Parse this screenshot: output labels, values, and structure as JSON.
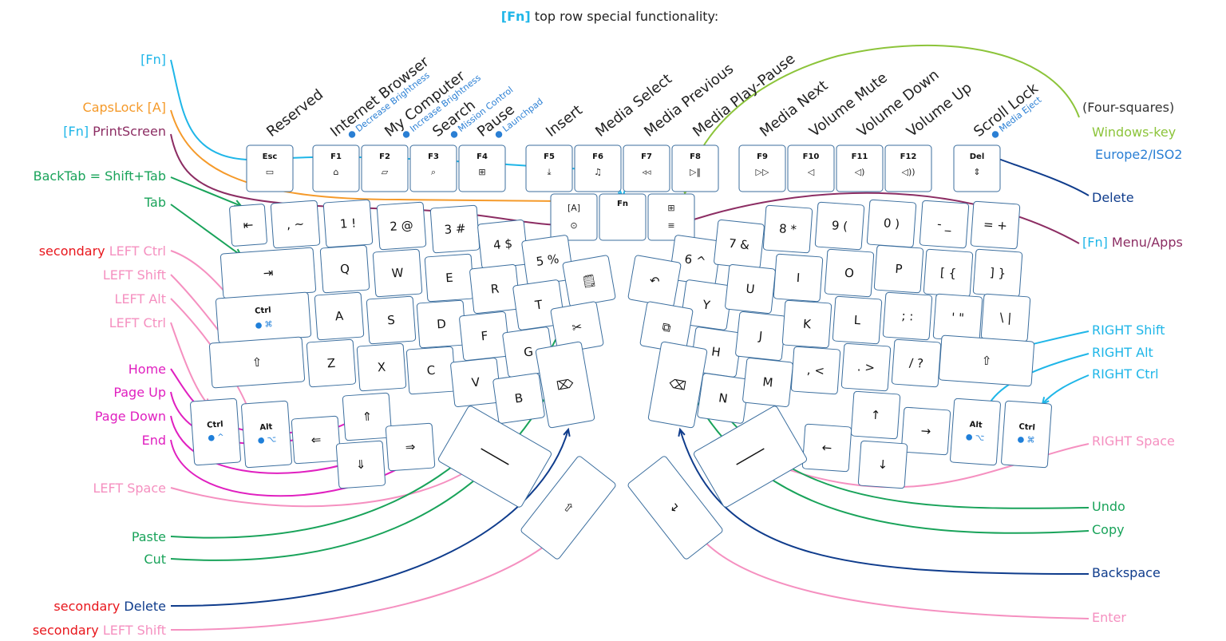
{
  "title": {
    "fn": "[Fn]",
    "rest": " top row special functionality:"
  },
  "colors": {
    "cyan": "#1fb6e8",
    "orange": "#f59a2a",
    "plum": "#8c2d63",
    "green": "#19a35a",
    "pink": "#f590c0",
    "red": "#e8161c",
    "magenta": "#e020c0",
    "navy": "#0f3c8c",
    "lime": "#8cc43a",
    "blue": "#2a7fd4"
  },
  "fn_row": [
    {
      "text": "Reserved",
      "sub": ""
    },
    {
      "text": "Internet Browser",
      "sub": "Decrease Brightness"
    },
    {
      "text": "My Computer",
      "sub": "Increase Brightness"
    },
    {
      "text": "Search",
      "sub": "Mission Control"
    },
    {
      "text": "Pause",
      "sub": "Launchpad"
    },
    {
      "text": "Insert",
      "sub": ""
    },
    {
      "text": "Media Select",
      "sub": ""
    },
    {
      "text": "Media Previous",
      "sub": ""
    },
    {
      "text": "Media Play-Pause",
      "sub": ""
    },
    {
      "text": "Media Next",
      "sub": ""
    },
    {
      "text": "Volume Mute",
      "sub": ""
    },
    {
      "text": "Volume Down",
      "sub": ""
    },
    {
      "text": "Volume Up",
      "sub": ""
    },
    {
      "text": "Scroll Lock",
      "sub": "Media Eject"
    }
  ],
  "left_labels": [
    {
      "parts": [
        {
          "t": "[Fn]",
          "c": "cyan"
        }
      ]
    },
    {
      "parts": [
        {
          "t": "CapsLock [A]",
          "c": "orange"
        }
      ]
    },
    {
      "parts": [
        {
          "t": "[Fn]",
          "c": "cyan"
        },
        {
          "t": " PrintScreen",
          "c": "plum"
        }
      ]
    },
    {
      "parts": [
        {
          "t": "BackTab = Shift+Tab",
          "c": "green"
        }
      ]
    },
    {
      "parts": [
        {
          "t": "Tab",
          "c": "green"
        }
      ]
    },
    {
      "parts": [
        {
          "t": "secondary",
          "c": "red"
        },
        {
          "t": " LEFT Ctrl",
          "c": "pink"
        }
      ]
    },
    {
      "parts": [
        {
          "t": "LEFT Shift",
          "c": "pink"
        }
      ]
    },
    {
      "parts": [
        {
          "t": "LEFT Alt",
          "c": "pink"
        }
      ]
    },
    {
      "parts": [
        {
          "t": "LEFT Ctrl",
          "c": "pink"
        }
      ]
    },
    {
      "parts": [
        {
          "t": "Home",
          "c": "magenta"
        }
      ]
    },
    {
      "parts": [
        {
          "t": "Page Up",
          "c": "magenta"
        }
      ]
    },
    {
      "parts": [
        {
          "t": "Page Down",
          "c": "magenta"
        }
      ]
    },
    {
      "parts": [
        {
          "t": "End",
          "c": "magenta"
        }
      ]
    },
    {
      "parts": [
        {
          "t": "LEFT Space",
          "c": "pink"
        }
      ]
    },
    {
      "parts": [
        {
          "t": "Paste",
          "c": "green"
        }
      ]
    },
    {
      "parts": [
        {
          "t": "Cut",
          "c": "green"
        }
      ]
    },
    {
      "parts": [
        {
          "t": "secondary",
          "c": "red"
        },
        {
          "t": " Delete",
          "c": "navy"
        }
      ]
    },
    {
      "parts": [
        {
          "t": "secondary",
          "c": "red"
        },
        {
          "t": " LEFT Shift",
          "c": "pink"
        }
      ]
    }
  ],
  "right_labels": [
    {
      "parts": [
        {
          "t": "(Four-squares)",
          "c": "dark"
        }
      ]
    },
    {
      "parts": [
        {
          "t": "Windows-key",
          "c": "lime"
        }
      ]
    },
    {
      "parts": [
        {
          "t": "Europe2/ISO2",
          "c": "blue"
        }
      ]
    },
    {
      "parts": [
        {
          "t": "Delete",
          "c": "navy"
        }
      ]
    },
    {
      "parts": [
        {
          "t": "[Fn]",
          "c": "cyan"
        },
        {
          "t": " Menu/Apps",
          "c": "plum"
        }
      ]
    },
    {
      "parts": [
        {
          "t": "RIGHT Shift",
          "c": "cyan"
        }
      ]
    },
    {
      "parts": [
        {
          "t": "RIGHT Alt",
          "c": "cyan"
        }
      ]
    },
    {
      "parts": [
        {
          "t": "RIGHT Ctrl",
          "c": "cyan"
        }
      ]
    },
    {
      "parts": [
        {
          "t": "RIGHT Space",
          "c": "pink"
        }
      ]
    },
    {
      "parts": [
        {
          "t": "Undo",
          "c": "green"
        }
      ]
    },
    {
      "parts": [
        {
          "t": "Copy",
          "c": "green"
        }
      ]
    },
    {
      "parts": [
        {
          "t": "Backspace",
          "c": "navy"
        }
      ]
    },
    {
      "parts": [
        {
          "t": "Enter",
          "c": "pink"
        }
      ]
    }
  ],
  "keys": {
    "top": [
      "Esc",
      "F1",
      "F2",
      "F3",
      "F4",
      "F5",
      "F6",
      "F7",
      "F8",
      "F9",
      "F10",
      "F11",
      "F12",
      "Del"
    ],
    "top_icons": [
      "▭",
      "⌂",
      "▱",
      "⌕",
      "⊞",
      "⤓",
      "♫",
      "◃◃",
      "▷‖",
      "▷▷",
      "◁",
      "◁)",
      "◁))",
      "⇕"
    ],
    "fn": "Fn",
    "left_rows": [
      [
        "⇤",
        ", ~",
        "1 !",
        "2 @",
        "3 #",
        "4 $",
        "5 %"
      ],
      [
        "⇥",
        "Q",
        "W",
        "E",
        "R",
        "T"
      ],
      [
        "Ctrl",
        "A",
        "S",
        "D",
        "F",
        "G"
      ],
      [
        "⇧",
        "Z",
        "X",
        "C",
        "V",
        "B"
      ],
      [
        "Ctrl",
        "Alt",
        "⇐",
        "⇑",
        "⇓",
        "⇒"
      ]
    ],
    "right_rows": [
      [
        "6 ^",
        "7 &",
        "8 *",
        "9 (",
        "0 )",
        "- _",
        "= +"
      ],
      [
        "Y",
        "U",
        "I",
        "O",
        "P",
        "[ {",
        "] }"
      ],
      [
        "H",
        "J",
        "K",
        "L",
        "; :",
        "' \"",
        "\\ |"
      ],
      [
        "N",
        "M",
        ", <",
        ". >",
        "/ ?",
        "⇧"
      ],
      [
        "↑",
        "→",
        "←",
        "↓",
        "Alt",
        "Ctrl"
      ]
    ],
    "mac_cmd": "⌘",
    "mac_ctrl": "^",
    "mac_opt": "⌥"
  }
}
